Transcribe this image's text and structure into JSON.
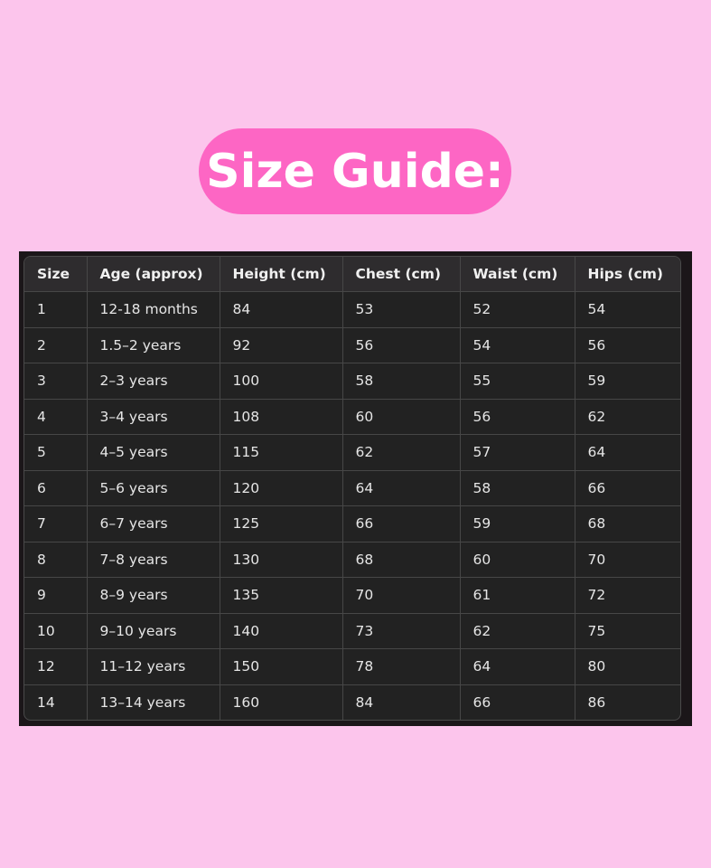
{
  "title": "Size Guide:",
  "colors": {
    "background": "#fcc5ec",
    "pill": "#fd66c4",
    "table_bg": "#222222"
  },
  "table": {
    "headers": [
      "Size",
      "Age (approx)",
      "Height (cm)",
      "Chest (cm)",
      "Waist (cm)",
      "Hips (cm)"
    ],
    "rows": [
      [
        "1",
        "12-18 months",
        "84",
        "53",
        "52",
        "54"
      ],
      [
        "2",
        "1.5–2 years",
        "92",
        "56",
        "54",
        "56"
      ],
      [
        "3",
        "2–3 years",
        "100",
        "58",
        "55",
        "59"
      ],
      [
        "4",
        "3–4 years",
        "108",
        "60",
        "56",
        "62"
      ],
      [
        "5",
        "4–5 years",
        "115",
        "62",
        "57",
        "64"
      ],
      [
        "6",
        "5–6 years",
        "120",
        "64",
        "58",
        "66"
      ],
      [
        "7",
        "6–7 years",
        "125",
        "66",
        "59",
        "68"
      ],
      [
        "8",
        "7–8 years",
        "130",
        "68",
        "60",
        "70"
      ],
      [
        "9",
        "8–9 years",
        "135",
        "70",
        "61",
        "72"
      ],
      [
        "10",
        "9–10 years",
        "140",
        "73",
        "62",
        "75"
      ],
      [
        "12",
        "11–12 years",
        "150",
        "78",
        "64",
        "80"
      ],
      [
        "14",
        "13–14 years",
        "160",
        "84",
        "66",
        "86"
      ]
    ]
  }
}
